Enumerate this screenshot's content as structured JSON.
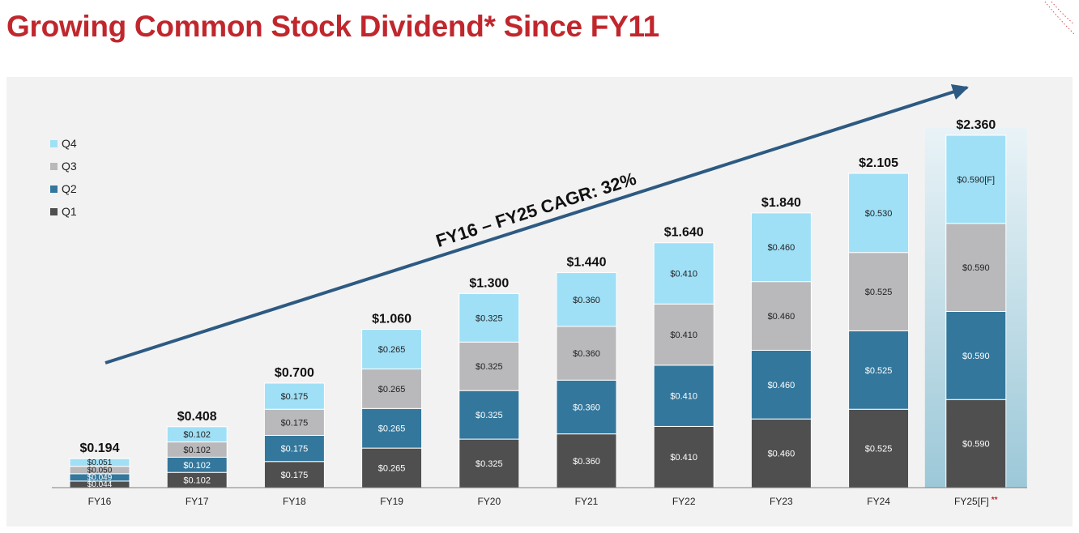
{
  "title": "Growing Common Stock Dividend* Since FY11",
  "colors": {
    "title": "#c0272d",
    "q1": "#4f4f4f",
    "q2": "#33779c",
    "q3": "#b9b9bc",
    "q4": "#9fe0f7",
    "arrow": "#2d5a82",
    "forecast_highlight": "#9cc8d8",
    "asterisk": "#c0272d"
  },
  "chart_data": {
    "type": "bar",
    "stacked": true,
    "categories": [
      "FY16",
      "FY17",
      "FY18",
      "FY19",
      "FY20",
      "FY21",
      "FY22",
      "FY23",
      "FY24",
      "FY25[F]"
    ],
    "category_suffix": {
      "FY25[F]": "**"
    },
    "series": [
      {
        "name": "Q1",
        "values": [
          0.044,
          0.102,
          0.175,
          0.265,
          0.325,
          0.36,
          0.41,
          0.46,
          0.525,
          0.59
        ],
        "labels": [
          "$0.044",
          "$0.102",
          "$0.175",
          "$0.265",
          "$0.325",
          "$0.360",
          "$0.410",
          "$0.460",
          "$0.525",
          "$0.590"
        ]
      },
      {
        "name": "Q2",
        "values": [
          0.049,
          0.102,
          0.175,
          0.265,
          0.325,
          0.36,
          0.41,
          0.46,
          0.525,
          0.59
        ],
        "labels": [
          "$0.049",
          "$0.102",
          "$0.175",
          "$0.265",
          "$0.325",
          "$0.360",
          "$0.410",
          "$0.460",
          "$0.525",
          "$0.590"
        ]
      },
      {
        "name": "Q3",
        "values": [
          0.05,
          0.102,
          0.175,
          0.265,
          0.325,
          0.36,
          0.41,
          0.46,
          0.525,
          0.59
        ],
        "labels": [
          "$0.050",
          "$0.102",
          "$0.175",
          "$0.265",
          "$0.325",
          "$0.360",
          "$0.410",
          "$0.460",
          "$0.525",
          "$0.590"
        ]
      },
      {
        "name": "Q4",
        "values": [
          0.051,
          0.102,
          0.175,
          0.265,
          0.325,
          0.36,
          0.41,
          0.46,
          0.53,
          0.59
        ],
        "labels": [
          "$0.051",
          "$0.102",
          "$0.175",
          "$0.265",
          "$0.325",
          "$0.360",
          "$0.410",
          "$0.460",
          "$0.530",
          "$0.590[F]"
        ]
      }
    ],
    "totals": [
      0.194,
      0.408,
      0.7,
      1.06,
      1.3,
      1.44,
      1.64,
      1.84,
      2.105,
      2.36
    ],
    "total_labels": [
      "$0.194",
      "$0.408",
      "$0.700",
      "$1.060",
      "$1.300",
      "$1.440",
      "$1.640",
      "$1.840",
      "$2.105",
      "$2.360"
    ],
    "legend": [
      "Q4",
      "Q3",
      "Q2",
      "Q1"
    ],
    "legend_position": "top-left",
    "annotation": "FY16 – FY25 CAGR: 32%",
    "ylim": [
      0,
      2.36
    ],
    "grid": false
  }
}
